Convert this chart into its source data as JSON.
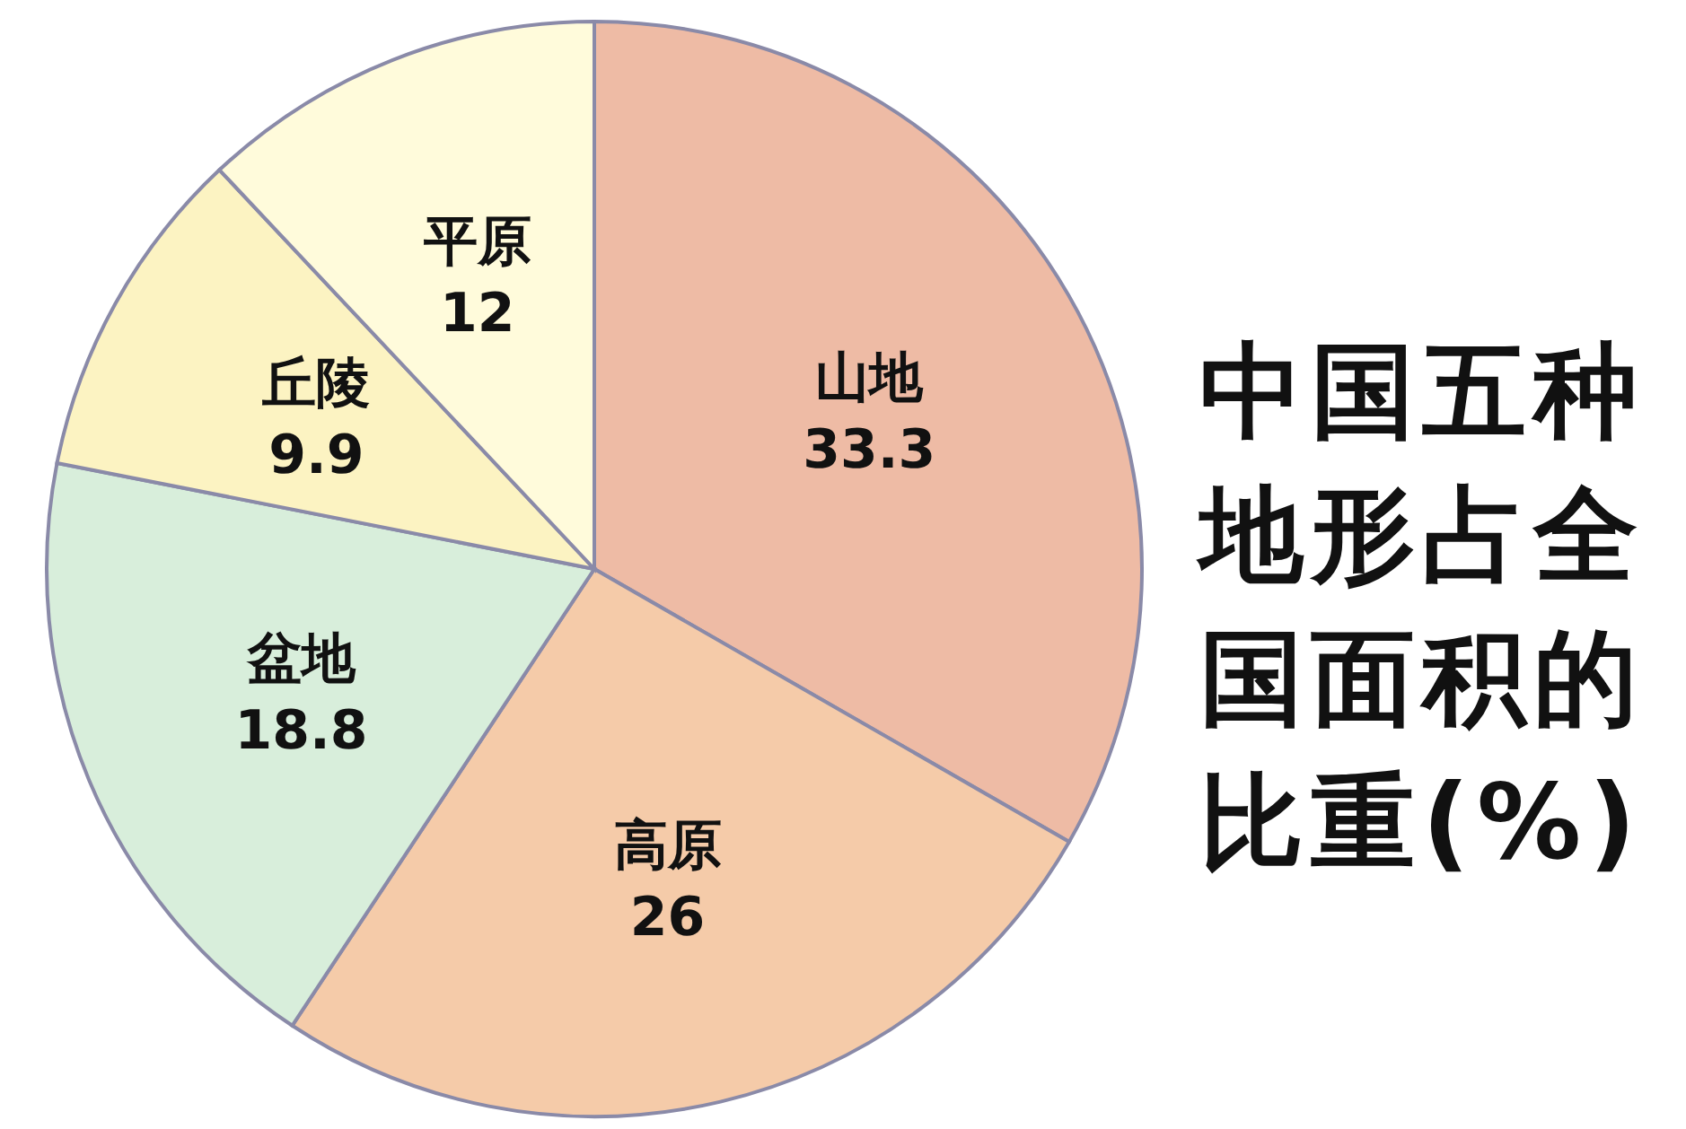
{
  "chart_data": {
    "type": "pie",
    "title": "中国五种地形占全国面积的比重(%)",
    "categories": [
      "山地",
      "高原",
      "盆地",
      "丘陵",
      "平原"
    ],
    "values": [
      33.3,
      26,
      18.8,
      9.9,
      12
    ],
    "colors": [
      "#eebba5",
      "#f5cba9",
      "#d8eedb",
      "#fcf3c2",
      "#fffbdb"
    ],
    "data_labels": true
  }
}
